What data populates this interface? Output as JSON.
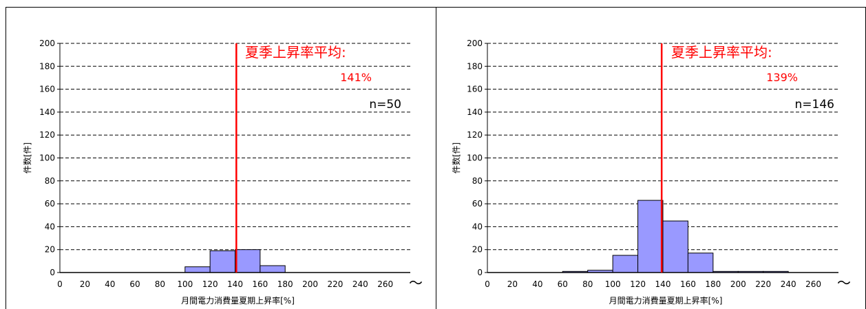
{
  "chart_data": [
    {
      "type": "bar",
      "ylabel": "件数[件]",
      "xlabel": "月間電力消費量夏期上昇率[%]",
      "x_ticks": [
        "0",
        "20",
        "40",
        "60",
        "80",
        "100",
        "120",
        "140",
        "160",
        "180",
        "200",
        "220",
        "240",
        "260"
      ],
      "x_overflow_mark": "〜",
      "y_ticks": [
        "0",
        "20",
        "40",
        "60",
        "80",
        "100",
        "120",
        "140",
        "160",
        "180",
        "200"
      ],
      "ylim": [
        0,
        200
      ],
      "xlim": [
        0,
        280
      ],
      "grid": "horizontal dashed",
      "bin_width": 20,
      "bins": [
        100,
        120,
        140,
        160
      ],
      "values": [
        5,
        19,
        20,
        6
      ],
      "bar_color": "#9999ff",
      "mean_line": 141,
      "mean_color": "#ff0000",
      "annotation_title": "夏季上昇率平均:",
      "annotation_value": "141%",
      "n_label": "n=50"
    },
    {
      "type": "bar",
      "ylabel": "件数[件]",
      "xlabel": "月間電力消費量夏期上昇率[%]",
      "x_ticks": [
        "0",
        "20",
        "40",
        "60",
        "80",
        "100",
        "120",
        "140",
        "160",
        "180",
        "200",
        "220",
        "240",
        "260"
      ],
      "x_overflow_mark": "〜",
      "y_ticks": [
        "0",
        "20",
        "40",
        "60",
        "80",
        "100",
        "120",
        "140",
        "160",
        "180",
        "200"
      ],
      "ylim": [
        0,
        200
      ],
      "xlim": [
        0,
        280
      ],
      "grid": "horizontal dashed",
      "bin_width": 20,
      "bins": [
        60,
        80,
        100,
        120,
        140,
        160,
        180,
        200,
        220
      ],
      "values": [
        1,
        2,
        15,
        63,
        45,
        17,
        1,
        1,
        1
      ],
      "bar_color": "#9999ff",
      "mean_line": 139,
      "mean_color": "#ff0000",
      "annotation_title": "夏季上昇率平均:",
      "annotation_value": "139%",
      "n_label": "n=146"
    }
  ]
}
